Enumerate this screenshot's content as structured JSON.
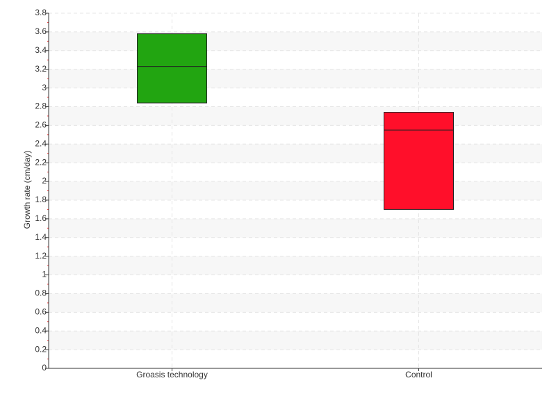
{
  "chart_data": {
    "type": "box",
    "y_label": "Growth rate (cm/day)",
    "categories": [
      "Groasis technology",
      "Control"
    ],
    "boxes": [
      {
        "low": 2.84,
        "median": 3.23,
        "high": 3.58,
        "color": "#22a511"
      },
      {
        "low": 1.7,
        "median": 2.55,
        "high": 2.74,
        "color": "#ff0f2a"
      }
    ],
    "ylim": [
      0,
      3.8
    ],
    "yticks": [
      0,
      0.2,
      0.4,
      0.6,
      0.8,
      1,
      1.2,
      1.4,
      1.6,
      1.8,
      2,
      2.2,
      2.4,
      2.6,
      2.8,
      3,
      3.2,
      3.4,
      3.6,
      3.8
    ],
    "grid": true
  }
}
